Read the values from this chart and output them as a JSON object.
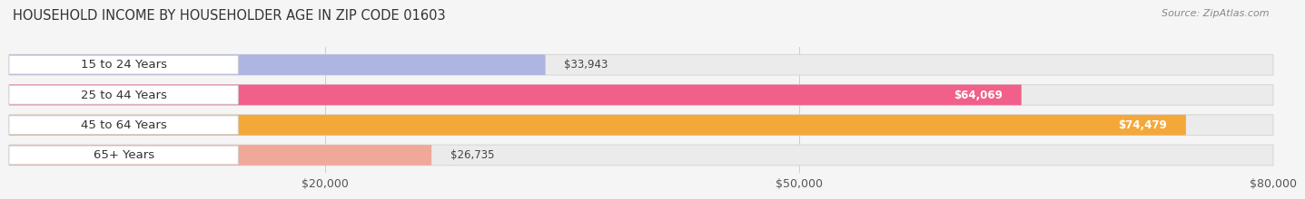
{
  "title": "HOUSEHOLD INCOME BY HOUSEHOLDER AGE IN ZIP CODE 01603",
  "source": "Source: ZipAtlas.com",
  "categories": [
    "15 to 24 Years",
    "25 to 44 Years",
    "45 to 64 Years",
    "65+ Years"
  ],
  "values": [
    33943,
    64069,
    74479,
    26735
  ],
  "bar_colors": [
    "#adb5e0",
    "#f0608a",
    "#f5a83a",
    "#f0a898"
  ],
  "bar_bg_color": "#ebebeb",
  "label_colors": [
    "#333333",
    "#ffffff",
    "#ffffff",
    "#333333"
  ],
  "xlim": [
    0,
    80000
  ],
  "xticks": [
    20000,
    50000,
    80000
  ],
  "xtick_labels": [
    "$20,000",
    "$50,000",
    "$80,000"
  ],
  "title_fontsize": 10.5,
  "source_fontsize": 8,
  "tick_fontsize": 9,
  "bar_label_fontsize": 8.5,
  "category_fontsize": 9.5,
  "background_color": "#f5f5f5",
  "grid_color": "#cccccc",
  "bar_height": 0.68,
  "bar_sep": 1.0
}
